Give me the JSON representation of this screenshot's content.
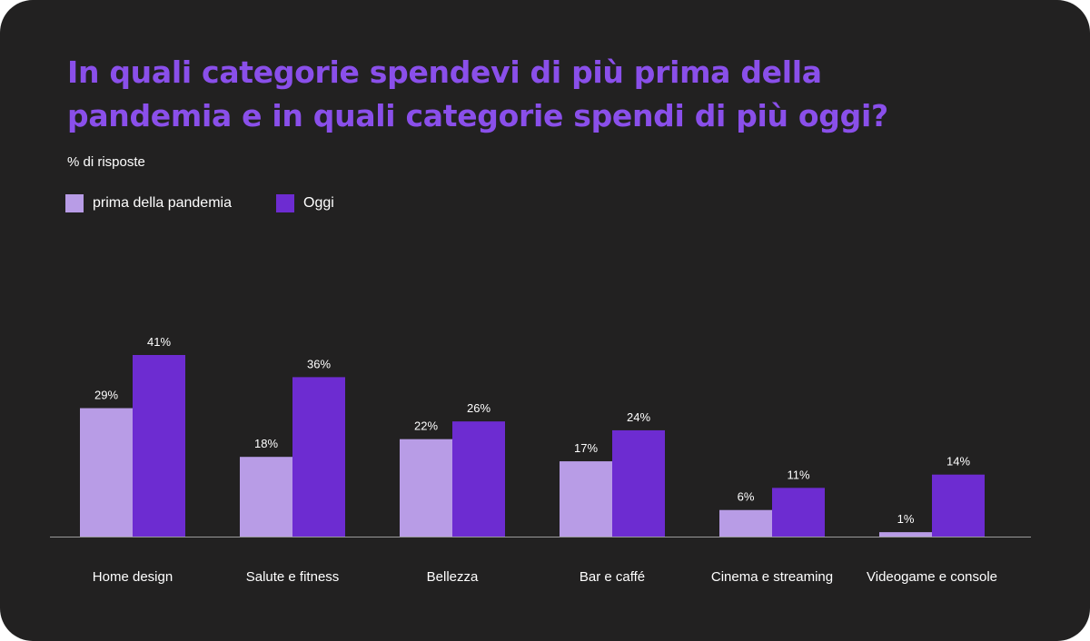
{
  "title_lines": [
    "In quali categorie spendevi di più prima della",
    "pandemia e in quali categorie spendi di più oggi?"
  ],
  "colors": {
    "background": "#222121",
    "title": "#8a4fea",
    "series_before": "#b89ce6",
    "series_today": "#6d2cd1",
    "text": "#ffffff",
    "baseline": "#9a9a9a"
  },
  "chart_data": {
    "type": "bar",
    "title": "In quali categorie spendevi di più prima della pandemia e in quali categorie spendi di più oggi?",
    "subtitle": "% di risposte",
    "ylabel": "",
    "xlabel": "",
    "ylim": [
      0,
      41
    ],
    "grid": false,
    "legend_position": "top-left",
    "categories": [
      "Home design",
      "Salute e fitness",
      "Bellezza",
      "Bar e caffé",
      "Cinema e streaming",
      "Videogame e console"
    ],
    "series": [
      {
        "name": "prima della pandemia",
        "color": "#b89ce6",
        "values": [
          29,
          18,
          22,
          17,
          6,
          1
        ],
        "labels": [
          "29%",
          "18%",
          "22%",
          "17%",
          "6%",
          "1%"
        ]
      },
      {
        "name": "Oggi",
        "color": "#6d2cd1",
        "values": [
          41,
          36,
          26,
          24,
          11,
          14
        ],
        "labels": [
          "41%",
          "36%",
          "26%",
          "24%",
          "11%",
          "14%"
        ]
      }
    ]
  }
}
